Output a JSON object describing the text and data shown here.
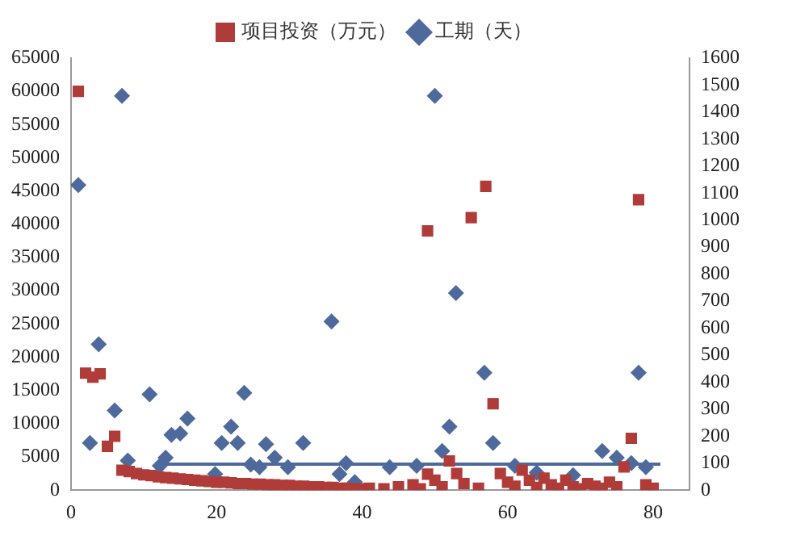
{
  "chart_data": {
    "type": "scatter",
    "legend": "top",
    "grid": false,
    "xlim": [
      0,
      85
    ],
    "xticks": [
      0,
      20,
      40,
      60,
      80
    ],
    "ylim": [
      0,
      65000
    ],
    "yticks": [
      0,
      5000,
      10000,
      15000,
      20000,
      25000,
      30000,
      35000,
      40000,
      45000,
      50000,
      55000,
      60000,
      65000
    ],
    "y2lim": [
      0,
      1600
    ],
    "y2ticks": [
      0,
      100,
      200,
      300,
      400,
      500,
      600,
      700,
      800,
      900,
      1000,
      1100,
      1200,
      1300,
      1400,
      1500,
      1600
    ],
    "series": [
      {
        "name": "项目投资（万元）",
        "color": "#b03c3a",
        "marker": "square",
        "x": [
          1,
          2,
          3,
          4,
          5,
          6,
          7,
          8,
          9,
          10,
          11,
          12,
          13,
          14,
          15,
          16,
          17,
          18,
          19,
          20,
          21,
          22,
          23,
          24,
          25,
          26,
          27,
          28,
          29,
          30,
          31,
          32,
          33,
          34,
          35,
          36,
          37,
          38,
          39,
          40,
          41,
          43,
          45,
          47,
          48,
          49,
          49,
          50,
          51,
          52,
          53,
          54,
          55,
          56,
          57,
          58,
          59,
          60,
          61,
          62,
          63,
          64,
          65,
          66,
          67,
          68,
          69,
          70,
          71,
          72,
          73,
          74,
          75,
          76,
          77,
          78,
          79,
          80
        ],
        "values": [
          60000,
          17600,
          17000,
          17500,
          6600,
          8100,
          3000,
          2800,
          2500,
          2300,
          2200,
          2000,
          1900,
          1800,
          1700,
          1600,
          1500,
          1400,
          1300,
          1200,
          1200,
          1100,
          1000,
          1000,
          900,
          900,
          800,
          800,
          700,
          700,
          600,
          600,
          500,
          500,
          400,
          400,
          300,
          300,
          200,
          200,
          300,
          200,
          500,
          800,
          200,
          39000,
          2400,
          1500,
          500,
          4400,
          2500,
          1000,
          41000,
          300,
          45700,
          13000,
          2500,
          1200,
          600,
          3000,
          1500,
          400,
          1800,
          800,
          300,
          1500,
          500,
          200,
          1000,
          600,
          300,
          1200,
          500,
          3500,
          7800,
          43700,
          800,
          300
        ]
      },
      {
        "name": "工期（天）",
        "color": "#4e6a9c",
        "marker": "diamond",
        "axis": "y2",
        "x": [
          1,
          2.6,
          3.8,
          6,
          7,
          7.8,
          10.8,
          12.2,
          13,
          13.8,
          15,
          16,
          19.8,
          20.7,
          22,
          22.9,
          23.8,
          24.7,
          25.9,
          26.8,
          28,
          29.8,
          31.9,
          35.8,
          36.9,
          37.8,
          39,
          43.8,
          47.5,
          50,
          51,
          52,
          52.9,
          54.5,
          56.8,
          58,
          61,
          64,
          69,
          70.4,
          73,
          75,
          77,
          78,
          79
        ],
        "values": [
          1130,
          175,
          540,
          295,
          1460,
          110,
          355,
          90,
          120,
          205,
          210,
          265,
          60,
          175,
          235,
          175,
          360,
          95,
          85,
          170,
          120,
          85,
          175,
          625,
          60,
          100,
          30,
          85,
          90,
          1460,
          145,
          235,
          730,
          null,
          435,
          175,
          90,
          65,
          55,
          null,
          145,
          120,
          100,
          435,
          85
        ]
      },
      {
        "type": "line",
        "color": "#4e6a9c",
        "axis": "y2",
        "marker": "none",
        "x": [
          13,
          81
        ],
        "values": [
          96,
          96
        ]
      }
    ]
  }
}
